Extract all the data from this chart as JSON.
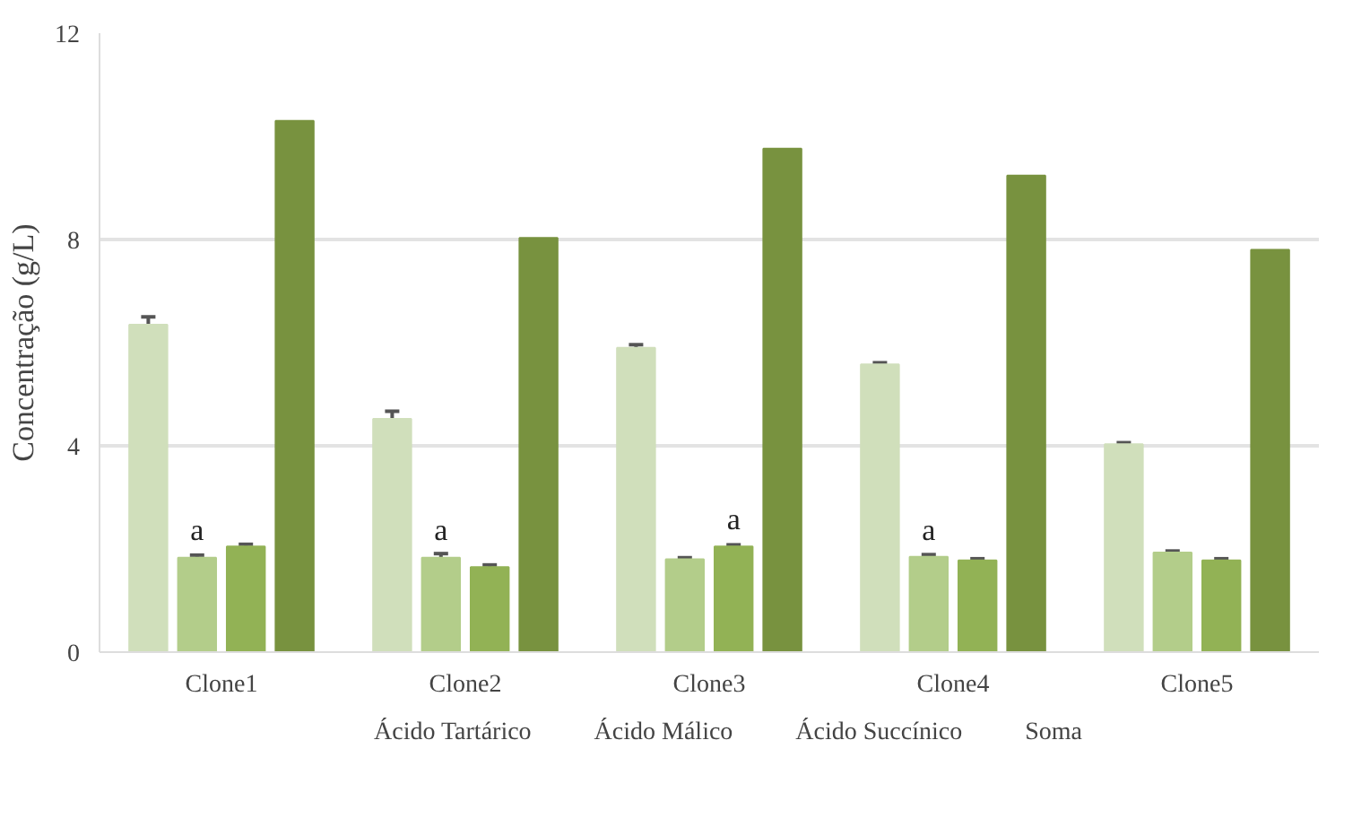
{
  "chart_data": {
    "type": "bar",
    "ylabel": "Concentração (g/L)",
    "categories": [
      "Clone1",
      "Clone2",
      "Clone3",
      "Clone4",
      "Clone5"
    ],
    "series": [
      {
        "name": "Ácido Tartárico",
        "color": "#d0dfbb",
        "values": [
          6.35,
          4.52,
          5.9,
          5.58,
          4.03
        ],
        "errors": [
          0.15,
          0.15,
          0.06,
          0.03,
          0.03
        ]
      },
      {
        "name": "Ácido Málico",
        "color": "#b3cd8a",
        "values": [
          1.83,
          1.83,
          1.8,
          1.85,
          1.93
        ],
        "errors": [
          0.05,
          0.08,
          0.03,
          0.04,
          0.03
        ]
      },
      {
        "name": "Ácido Succínico",
        "color": "#92b255",
        "values": [
          2.05,
          1.65,
          2.05,
          1.78,
          1.78
        ],
        "errors": [
          0.04,
          0.04,
          0.03,
          0.03,
          0.03
        ]
      },
      {
        "name": "Soma",
        "color": "#78923f",
        "values": [
          10.3,
          8.03,
          9.76,
          9.24,
          7.8
        ]
      }
    ],
    "annotations": [
      {
        "text": "a",
        "x": "Clone1",
        "y": 1.9
      },
      {
        "text": "a",
        "x": "Clone2",
        "y": 1.9
      },
      {
        "text": "a",
        "x": "Clone3",
        "y": 2.1
      },
      {
        "text": "a",
        "x": "Clone4",
        "y": 1.9
      }
    ],
    "ylim": [
      0,
      12
    ],
    "yticks": [
      0,
      4,
      8,
      12
    ],
    "grid": "y",
    "legend": "bottom"
  }
}
